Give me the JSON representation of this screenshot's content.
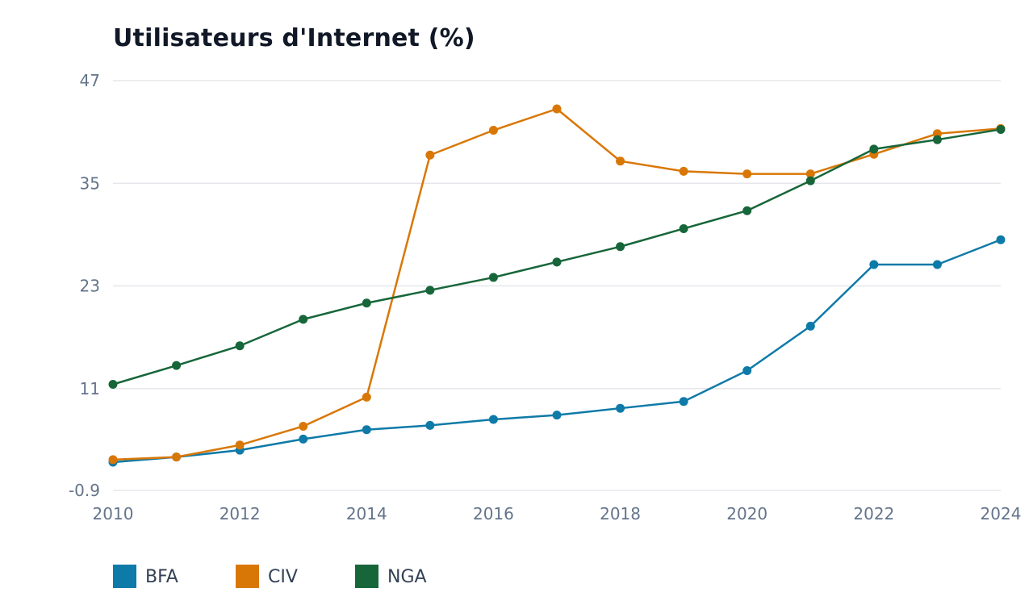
{
  "chart_data": {
    "type": "line",
    "title": "Utilisateurs d'Internet (%)",
    "xlabel": "",
    "ylabel": "",
    "x": [
      2010,
      2011,
      2012,
      2013,
      2014,
      2015,
      2016,
      2017,
      2018,
      2019,
      2020,
      2021,
      2022,
      2023,
      2024
    ],
    "xlim": [
      2010,
      2024
    ],
    "x_ticks": [
      "2010",
      "2012",
      "2014",
      "2016",
      "2018",
      "2020",
      "2022",
      "2024"
    ],
    "ylim": [
      -0.9,
      47
    ],
    "y_ticks": [
      "47",
      "35",
      "23",
      "11",
      "-0.9"
    ],
    "grid": "horizontal",
    "legend_position": "bottom-left",
    "series": [
      {
        "name": "BFA",
        "color": "#0e7aa8",
        "values": [
          2.4,
          3.0,
          3.8,
          5.1,
          6.2,
          6.7,
          7.4,
          7.9,
          8.7,
          9.5,
          13.1,
          18.3,
          25.5,
          25.5,
          28.4
        ]
      },
      {
        "name": "CIV",
        "color": "#d97706",
        "values": [
          2.7,
          3.0,
          4.4,
          6.6,
          10.0,
          38.3,
          41.2,
          43.7,
          37.6,
          36.4,
          36.1,
          36.1,
          38.4,
          40.8,
          41.4
        ]
      },
      {
        "name": "NGA",
        "color": "#17663a",
        "values": [
          11.5,
          13.7,
          16.0,
          19.1,
          21.0,
          22.5,
          24.0,
          25.8,
          27.6,
          29.7,
          31.8,
          35.3,
          39.0,
          40.1,
          41.3
        ]
      }
    ]
  }
}
